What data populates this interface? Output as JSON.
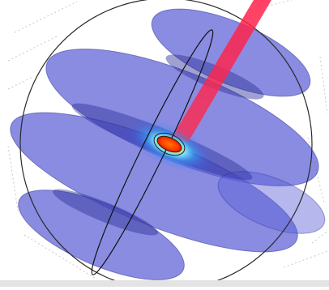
{
  "figure": {
    "caption": "",
    "colors": {
      "background": "#ffffff",
      "grid_line": "#c8c8c8",
      "sphere_outline": "#2a2a2a",
      "disk_fill": "#5b5fd6",
      "disk_edge": "#2b2f8f",
      "beam_fill": "#ff1f4a",
      "core_hot": "#ff3b00",
      "glow_inner": "#ffe640",
      "glow_mid": "#49d8ff",
      "glow_outer": "#2f7dff",
      "bottom_strip": "#e3e3e3"
    },
    "elements": [
      {
        "name": "enclosing-sphere",
        "kind": "wireframe circle"
      },
      {
        "name": "horizontal-disks",
        "kind": "stacked translucent ellipses",
        "count": 5
      },
      {
        "name": "jet-beam",
        "kind": "translucent red cone"
      },
      {
        "name": "central-hotspot",
        "kind": "colored glow with core"
      },
      {
        "name": "inner-lens-outline",
        "kind": "thin ellipse outline"
      }
    ]
  }
}
